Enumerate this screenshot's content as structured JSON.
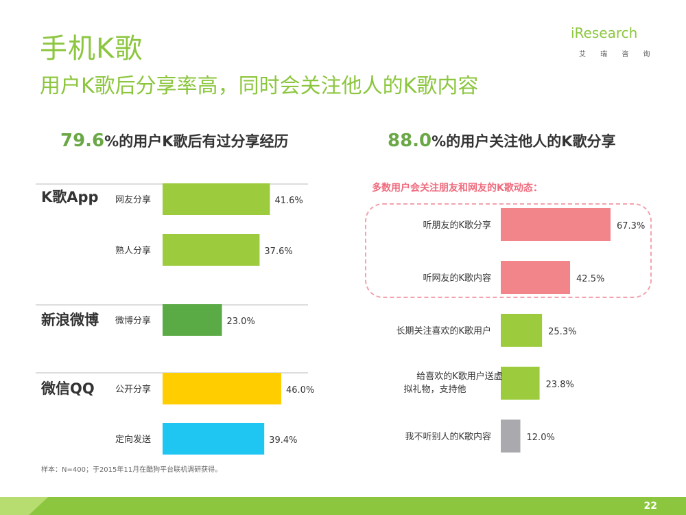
{
  "header": {
    "title": "手机K歌",
    "subtitle": "用户K歌后分享率高，同时会关注他人的K歌内容"
  },
  "logo": {
    "brand": "iResearch",
    "sub": "艾 瑞 咨 询"
  },
  "left_panel": {
    "headline_value": "79.6",
    "headline_text": "%的用户K歌后有过分享经历"
  },
  "right_panel": {
    "headline_value": "88.0",
    "headline_text": "%的用户关注他人的K歌分享",
    "note": "多数用户会关注朋友和网友的K歌动态："
  },
  "footnote": "样本：N=400；于2015年11月在酷狗平台联机调研获得。",
  "page_number": "22",
  "colors": {
    "green": "#9ccc3d",
    "dark_green": "#5aaa45",
    "yellow": "#ffcd00",
    "cyan": "#1fc6f2",
    "pink": "#f28589",
    "gray": "#aaa9ad",
    "brand_green": "#8cc63e"
  },
  "chart_data": [
    {
      "type": "bar",
      "orientation": "horizontal",
      "groups": [
        {
          "name": "K歌App",
          "items": [
            {
              "label": "网友分享",
              "value": 41.6,
              "display": "41.6%",
              "color": "#9ccc3d"
            },
            {
              "label": "熟人分享",
              "value": 37.6,
              "display": "37.6%",
              "color": "#9ccc3d"
            }
          ]
        },
        {
          "name": "新浪微博",
          "items": [
            {
              "label": "微博分享",
              "value": 23.0,
              "display": "23.0%",
              "color": "#5aaa45"
            }
          ]
        },
        {
          "name": "微信QQ",
          "items": [
            {
              "label": "公开分享",
              "value": 46.0,
              "display": "46.0%",
              "color": "#ffcd00"
            },
            {
              "label": "定向发送",
              "value": 39.4,
              "display": "39.4%",
              "color": "#1fc6f2"
            }
          ]
        }
      ],
      "xlim": [
        0,
        50
      ]
    },
    {
      "type": "bar",
      "orientation": "horizontal",
      "items": [
        {
          "label": "听朋友的K歌分享",
          "value": 67.3,
          "display": "67.3%",
          "color": "#f28589"
        },
        {
          "label": "听网友的K歌内容",
          "value": 42.5,
          "display": "42.5%",
          "color": "#f28589"
        },
        {
          "label": "长期关注喜欢的K歌用户",
          "value": 25.3,
          "display": "25.3%",
          "color": "#9ccc3d"
        },
        {
          "label": "给喜欢的K歌用户送虚拟礼物，支持他",
          "value": 23.8,
          "display": "23.8%",
          "color": "#9ccc3d"
        },
        {
          "label": "我不听别人的K歌内容",
          "value": 12.0,
          "display": "12.0%",
          "color": "#aaa9ad"
        }
      ],
      "xlim": [
        0,
        70
      ]
    }
  ]
}
